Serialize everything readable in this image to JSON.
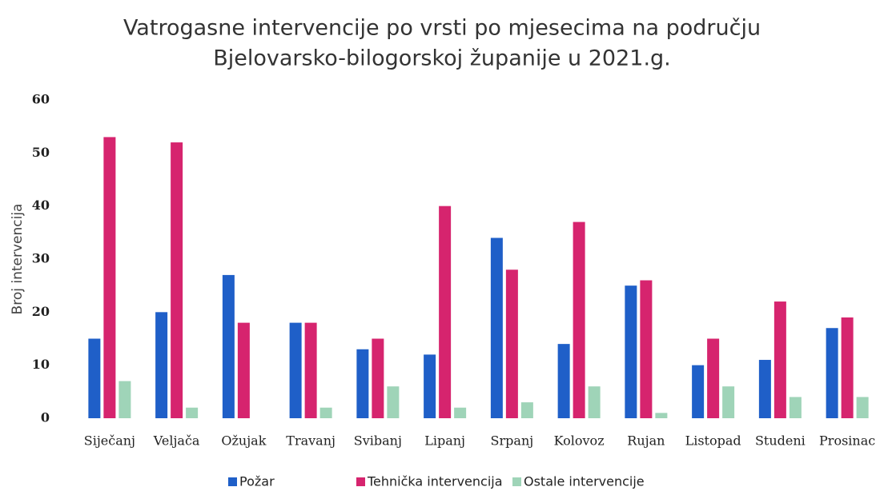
{
  "chart_data": {
    "type": "bar",
    "title": [
      "Vatrogasne intervencije po vrsti po mjesecima na području",
      "Bjelovarsko-bilogorskoj županije u 2021.g."
    ],
    "y_label": "Broj intervencija",
    "categories": [
      "Siječanj",
      "Veljača",
      "Ožujak",
      "Travanj",
      "Svibanj",
      "Lipanj",
      "Srpanj",
      "Kolovoz",
      "Rujan",
      "Listopad",
      "Studeni",
      "Prosinac"
    ],
    "series": [
      {
        "name": "Požar",
        "color": "#1f5fc8",
        "values": [
          15,
          20,
          27,
          18,
          13,
          12,
          34,
          14,
          25,
          10,
          11,
          17
        ]
      },
      {
        "name": "Tehnička intervencija",
        "color": "#d6246e",
        "values": [
          53,
          52,
          18,
          18,
          15,
          40,
          28,
          37,
          26,
          15,
          22,
          19
        ]
      },
      {
        "name": "Ostale intervencije",
        "color": "#9fd4b8",
        "values": [
          7,
          2,
          0,
          2,
          6,
          2,
          3,
          6,
          1,
          6,
          4,
          4
        ]
      }
    ],
    "ylim": [
      0,
      60
    ],
    "yticks": [
      0,
      10,
      20,
      30,
      40,
      50,
      60
    ],
    "grid": false,
    "legend": "bottom"
  }
}
